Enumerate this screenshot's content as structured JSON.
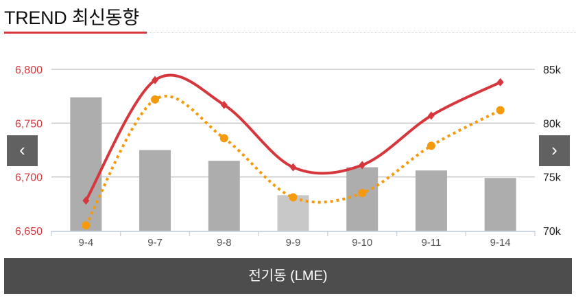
{
  "header": {
    "title": "TREND 최신동향"
  },
  "footer": {
    "label": "전기동 (LME)"
  },
  "nav": {
    "prev": "‹",
    "next": "›"
  },
  "colors": {
    "accent": "#d6373d",
    "bars": "#adadad",
    "bar_highlight": "#c8c8c8",
    "dotted": "#f59a0c",
    "left_ticks": "#d6373d"
  },
  "chart_data": {
    "type": "bar",
    "categories": [
      "9-4",
      "9-7",
      "9-8",
      "9-9",
      "9-10",
      "9-11",
      "9-14"
    ],
    "left_axis": {
      "ylim": [
        6650,
        6800
      ],
      "ticks": [
        "6,650",
        "6,700",
        "6,750",
        "6,800"
      ],
      "tick_values": [
        6650,
        6700,
        6750,
        6800
      ]
    },
    "right_axis": {
      "ylim": [
        70,
        85
      ],
      "ticks": [
        "70k",
        "75k",
        "80k",
        "85k"
      ],
      "tick_values": [
        70,
        75,
        80,
        85
      ]
    },
    "series": [
      {
        "name": "bars",
        "type": "bar",
        "axis": "right",
        "values": [
          82.4,
          77.5,
          76.5,
          73.3,
          75.9,
          75.6,
          74.9
        ],
        "highlight_index": 3
      },
      {
        "name": "red-line",
        "type": "line",
        "axis": "left",
        "marker": "diamond",
        "values": [
          6678,
          6790,
          6767,
          6709,
          6711,
          6757,
          6788
        ]
      },
      {
        "name": "orange-dotted",
        "type": "line",
        "axis": "left",
        "marker": "circle",
        "values": [
          6655,
          6772,
          6736,
          6681,
          6685,
          6729,
          6762
        ]
      }
    ],
    "grid": true
  }
}
